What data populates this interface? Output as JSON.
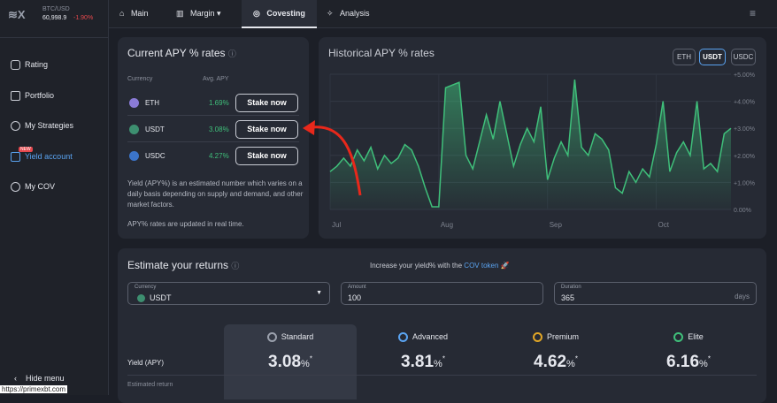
{
  "ticker": {
    "pair": "BTC/USD",
    "price": "60,998.9",
    "change": "-1.90%"
  },
  "nav": {
    "tabs": [
      "Main",
      "Margin",
      "Covesting",
      "Analysis"
    ]
  },
  "sidebar": {
    "items": [
      "Rating",
      "Portfolio",
      "My Strategies",
      "Yield account",
      "My COV"
    ],
    "badge": "NEW",
    "hide_menu": "Hide menu",
    "url": "https://primexbt.com"
  },
  "apy_panel": {
    "title": "Current APY % rates",
    "headers": [
      "Currency",
      "Avg. APY"
    ],
    "rows": [
      {
        "currency": "ETH",
        "apy": "1.69%",
        "action": "Stake now"
      },
      {
        "currency": "USDT",
        "apy": "3.08%",
        "action": "Stake now"
      },
      {
        "currency": "USDC",
        "apy": "4.27%",
        "action": "Stake now"
      }
    ],
    "note": "Yield (APY%) is an estimated number which varies on a daily basis depending on supply and demand, and other market factors.",
    "note2": "APY% rates are updated in real time."
  },
  "historical": {
    "type": "area",
    "title": "Historical APY % rates",
    "tabs": [
      "ETH",
      "USDT",
      "USDC"
    ],
    "active_tab": "USDT",
    "color": "#3fbf7a",
    "categories": [
      "Jul",
      null,
      null,
      null,
      null,
      null,
      null,
      null,
      null,
      null,
      null,
      null,
      null,
      null,
      null,
      null,
      "Aug",
      null,
      null,
      null,
      null,
      null,
      null,
      null,
      null,
      null,
      null,
      null,
      null,
      null,
      null,
      null,
      "Sep",
      null,
      null,
      null,
      null,
      null,
      null,
      null,
      null,
      null,
      null,
      null,
      null,
      null,
      null,
      null,
      "Oct",
      null,
      null,
      null,
      null,
      null,
      null,
      null,
      null,
      null,
      null,
      null
    ],
    "values": [
      1.4,
      1.6,
      1.9,
      1.6,
      2.2,
      1.8,
      2.3,
      1.5,
      2.0,
      1.7,
      1.9,
      2.4,
      2.2,
      1.6,
      0.8,
      0.1,
      0.1,
      4.5,
      4.6,
      4.7,
      2.0,
      1.5,
      2.5,
      3.5,
      2.6,
      4.0,
      2.8,
      1.6,
      2.4,
      3.0,
      2.5,
      3.8,
      1.1,
      1.9,
      2.5,
      2.0,
      4.8,
      2.3,
      2.0,
      2.8,
      2.6,
      2.2,
      0.8,
      0.6,
      1.4,
      1.0,
      1.5,
      1.2,
      2.4,
      4.0,
      1.4,
      2.1,
      2.5,
      2.0,
      4.0,
      1.5,
      1.7,
      1.4,
      2.8,
      3.0
    ],
    "ylim": [
      0,
      5
    ],
    "yticks": [
      {
        "value": 0,
        "label": "0.00%"
      },
      {
        "value": 1,
        "label": "+1.00%"
      },
      {
        "value": 2,
        "label": "+2.00%"
      },
      {
        "value": 3,
        "label": "+3.00%"
      },
      {
        "value": 4,
        "label": "+4.00%"
      },
      {
        "value": 5,
        "label": "+5.00%"
      }
    ],
    "grid": true
  },
  "estimate": {
    "title": "Estimate your returns",
    "promo": "Increase your yield% with the",
    "promo_link": "COV token",
    "fields": [
      {
        "label": "Currency",
        "value": "USDT"
      },
      {
        "label": "Amount",
        "value": "100"
      },
      {
        "label": "Duration",
        "value": "365",
        "unit": "days"
      }
    ],
    "plans": [
      {
        "name": "Standard",
        "yield": "3.08",
        "unit": "%",
        "mark": "*"
      },
      {
        "name": "Advanced",
        "yield": "3.81",
        "unit": "%",
        "mark": "*"
      },
      {
        "name": "Premium",
        "yield": "4.62",
        "unit": "%",
        "mark": "*"
      },
      {
        "name": "Elite",
        "yield": "6.16",
        "unit": "%",
        "mark": "*"
      }
    ],
    "row_label": "Yield (APY)",
    "row2_label": "Estimated return"
  }
}
